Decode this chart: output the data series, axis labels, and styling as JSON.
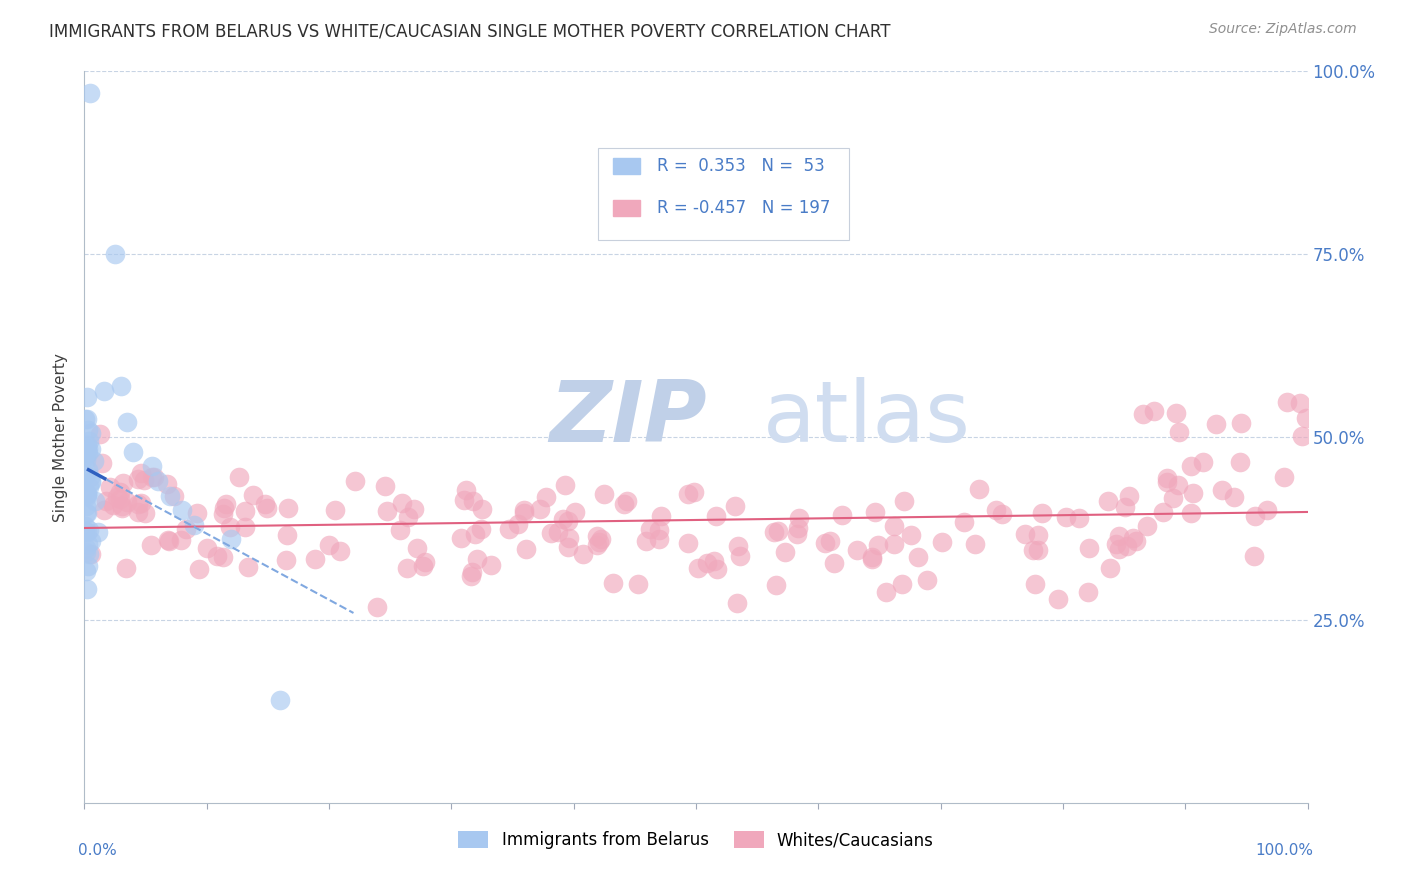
{
  "title": "IMMIGRANTS FROM BELARUS VS WHITE/CAUCASIAN SINGLE MOTHER POVERTY CORRELATION CHART",
  "source": "Source: ZipAtlas.com",
  "ylabel": "Single Mother Poverty",
  "blue_R": 0.353,
  "blue_N": 53,
  "pink_R": -0.457,
  "pink_N": 197,
  "blue_color": "#a8c8f0",
  "pink_color": "#f0a8bc",
  "blue_line_color": "#3060c0",
  "pink_line_color": "#e06080",
  "blue_dash_color": "#80a8e0",
  "watermark_zip_color": "#c0d0e8",
  "watermark_atlas_color": "#d0ddf0",
  "background_color": "#ffffff",
  "grid_color": "#c8d4e4",
  "title_color": "#303030",
  "source_color": "#909090",
  "right_tick_color": "#4a7cc7",
  "xlabel_color": "#4a7cc7",
  "legend_text_color": "#303030",
  "legend_val_color": "#4a7cc7"
}
